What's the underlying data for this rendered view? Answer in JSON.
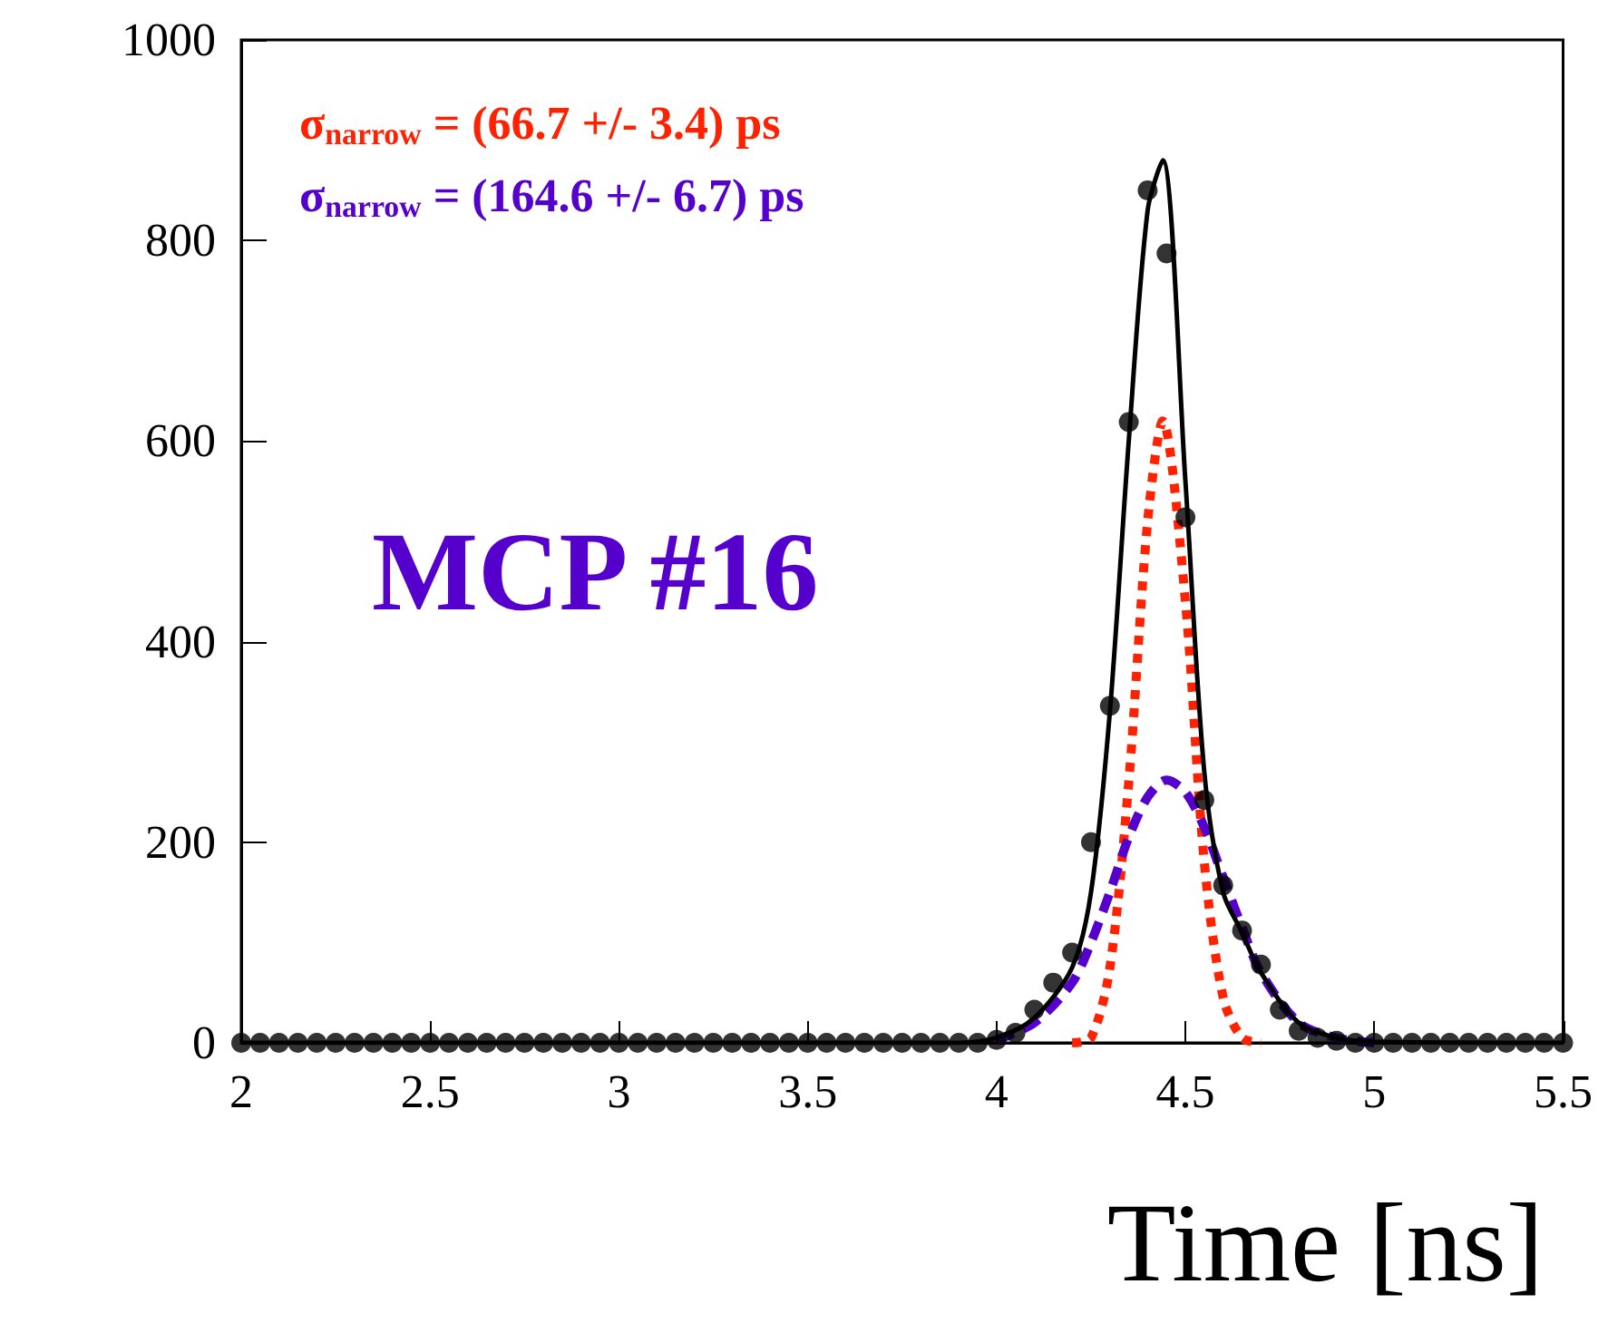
{
  "chart_data": {
    "type": "line",
    "xlabel": "Time [ns]",
    "xlim": [
      2,
      5.5
    ],
    "xticks": [
      2,
      2.5,
      3,
      3.5,
      4,
      4.5,
      5,
      5.5
    ],
    "ylim": [
      0,
      1000
    ],
    "yticks": [
      0,
      200,
      400,
      600,
      800,
      1000
    ],
    "grid": false,
    "annotations": [
      "σ$_{narrow}$ = (66.7 +/- 3.4) ps",
      "σ$_{narrow}$ = (164.6 +/- 6.7) ps",
      "MCP #16"
    ],
    "series": [
      {
        "type": "scatter",
        "marker": "circle",
        "color": "#000000",
        "x": [
          2,
          2.05,
          2.1,
          2.15,
          2.2,
          2.25,
          2.3,
          2.35,
          2.4,
          2.45,
          2.5,
          2.55,
          2.6,
          2.65,
          2.7,
          2.75,
          2.8,
          2.85,
          2.9,
          2.95,
          3,
          3.05,
          3.1,
          3.15,
          3.2,
          3.25,
          3.3,
          3.35,
          3.4,
          3.45,
          3.5,
          3.55,
          3.6,
          3.65,
          3.7,
          3.75,
          3.8,
          3.85,
          3.9,
          3.95,
          4,
          4.05,
          4.1,
          4.15,
          4.2,
          4.25,
          4.3,
          4.35,
          4.4,
          4.45,
          4.5,
          4.55,
          4.6,
          4.65,
          4.7,
          4.75,
          4.8,
          4.85,
          4.9,
          4.95,
          5,
          5.05,
          5.1,
          5.15,
          5.2,
          5.25,
          5.3,
          5.35,
          5.4,
          5.45,
          5.5
        ],
        "values": [
          0,
          0,
          0,
          0,
          0,
          0,
          0,
          0,
          0,
          0,
          0,
          0,
          0,
          0,
          0,
          0,
          0,
          0,
          0,
          0,
          0,
          0,
          0,
          0,
          0,
          0,
          0,
          0,
          0,
          0,
          0,
          0,
          0,
          0,
          0,
          0,
          0,
          0,
          0,
          0,
          3,
          10,
          33,
          60,
          90,
          200,
          336,
          619,
          850,
          787,
          524,
          242,
          157,
          112,
          78,
          33,
          12,
          5,
          2,
          0,
          0,
          0,
          0,
          0,
          0,
          0,
          0,
          0,
          0,
          0,
          0
        ]
      },
      {
        "line_style": "dotted",
        "color": "#ff2200",
        "x": [
          4.2,
          4.25,
          4.3,
          4.35,
          4.4,
          4.44,
          4.5,
          4.55,
          4.6,
          4.65,
          4.7
        ],
        "values": [
          0,
          5,
          75,
          260,
          520,
          620,
          440,
          180,
          45,
          5,
          0
        ]
      },
      {
        "line_style": "dashed",
        "color": "#5500cc",
        "x": [
          4,
          4.1,
          4.2,
          4.25,
          4.3,
          4.35,
          4.4,
          4.45,
          4.5,
          4.55,
          4.6,
          4.65,
          4.7,
          4.8,
          4.9,
          5
        ],
        "values": [
          3,
          20,
          60,
          100,
          150,
          205,
          245,
          262,
          250,
          215,
          165,
          115,
          70,
          20,
          5,
          0
        ]
      },
      {
        "line_style": "solid",
        "color": "#000000",
        "x": [
          2,
          3.9,
          4,
          4.1,
          4.2,
          4.25,
          4.3,
          4.35,
          4.4,
          4.44,
          4.5,
          4.55,
          4.6,
          4.65,
          4.7,
          4.8,
          4.9,
          5,
          5.5
        ],
        "values": [
          0,
          0,
          5,
          25,
          75,
          150,
          330,
          600,
          830,
          880,
          560,
          270,
          150,
          110,
          70,
          20,
          5,
          1,
          0
        ]
      }
    ]
  }
}
